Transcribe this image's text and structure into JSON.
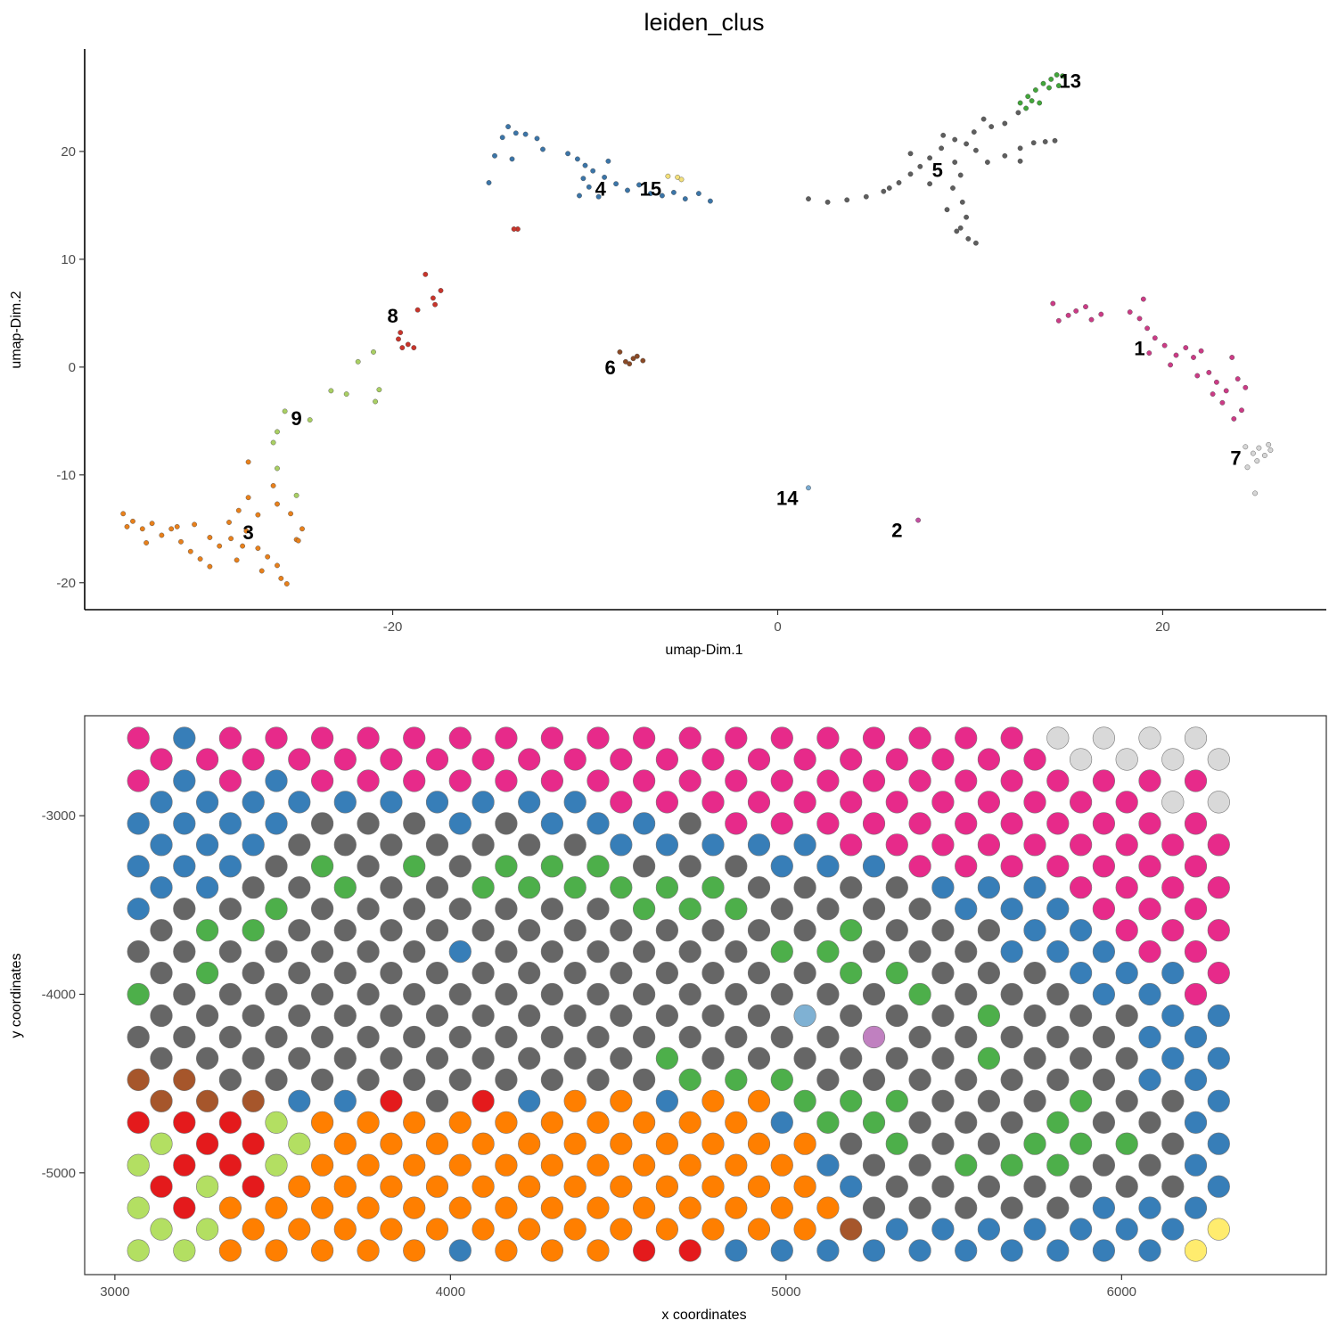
{
  "chart_data": [
    {
      "type": "scatter",
      "title": "leiden_clus",
      "xlabel": "umap-Dim.1",
      "ylabel": "umap-Dim.2",
      "xlim": [
        -36,
        28.5
      ],
      "ylim": [
        -22.5,
        29.5
      ],
      "xticks": [
        -20,
        0,
        20
      ],
      "yticks": [
        -20,
        -10,
        0,
        10,
        20
      ],
      "colors": {
        "1": "#cc3b86",
        "2": "#c24fa1",
        "3": "#e8801b",
        "4": "#3b75a8",
        "5": "#5e5e5e",
        "6": "#8a4a26",
        "7": "#d6d6d6",
        "8": "#c9342b",
        "9": "#a9cf63",
        "13": "#42a63a",
        "14": "#7aaad0",
        "15": "#f3e07a"
      },
      "clusters": [
        {
          "name": "1",
          "label_pos": [
            18.8,
            1.6
          ],
          "points": [
            [
              14.3,
              5.9
            ],
            [
              14.6,
              4.3
            ],
            [
              15.1,
              4.8
            ],
            [
              15.5,
              5.2
            ],
            [
              16.0,
              5.6
            ],
            [
              16.3,
              4.4
            ],
            [
              16.8,
              4.9
            ],
            [
              18.3,
              5.1
            ],
            [
              18.8,
              4.5
            ],
            [
              19.2,
              3.6
            ],
            [
              19.0,
              6.3
            ],
            [
              19.6,
              2.7
            ],
            [
              20.1,
              2.0
            ],
            [
              20.7,
              1.1
            ],
            [
              21.2,
              1.8
            ],
            [
              21.6,
              0.9
            ],
            [
              22.0,
              1.5
            ],
            [
              22.4,
              -0.5
            ],
            [
              22.8,
              -1.4
            ],
            [
              23.3,
              -2.2
            ],
            [
              23.6,
              0.9
            ],
            [
              23.9,
              -1.1
            ],
            [
              24.3,
              -1.9
            ],
            [
              23.1,
              -3.3
            ],
            [
              24.1,
              -4.0
            ],
            [
              23.7,
              -4.8
            ],
            [
              19.3,
              1.3
            ],
            [
              20.4,
              0.2
            ],
            [
              21.8,
              -0.8
            ],
            [
              22.6,
              -2.5
            ]
          ]
        },
        {
          "name": "2",
          "label_pos": [
            6.2,
            -15.3
          ],
          "points": [
            [
              7.3,
              -14.2
            ]
          ]
        },
        {
          "name": "3",
          "label_pos": [
            -27.5,
            -15.5
          ],
          "points": [
            [
              -34.0,
              -13.6
            ],
            [
              -33.5,
              -14.3
            ],
            [
              -33.0,
              -15.0
            ],
            [
              -32.5,
              -14.5
            ],
            [
              -32.0,
              -15.6
            ],
            [
              -31.5,
              -15.0
            ],
            [
              -31.0,
              -16.2
            ],
            [
              -30.5,
              -17.1
            ],
            [
              -30.0,
              -17.8
            ],
            [
              -29.5,
              -18.5
            ],
            [
              -30.3,
              -14.6
            ],
            [
              -29.5,
              -15.8
            ],
            [
              -29.0,
              -16.6
            ],
            [
              -28.5,
              -14.4
            ],
            [
              -28.0,
              -13.3
            ],
            [
              -27.5,
              -12.1
            ],
            [
              -27.0,
              -13.7
            ],
            [
              -27.6,
              -15.2
            ],
            [
              -27.0,
              -16.8
            ],
            [
              -26.5,
              -17.6
            ],
            [
              -26.0,
              -18.4
            ],
            [
              -25.8,
              -19.6
            ],
            [
              -25.5,
              -20.1
            ],
            [
              -25.0,
              -16.0
            ],
            [
              -24.7,
              -15.0
            ],
            [
              -25.3,
              -13.6
            ],
            [
              -26.0,
              -12.7
            ],
            [
              -26.2,
              -11.0
            ],
            [
              -28.1,
              -17.9
            ],
            [
              -28.4,
              -15.9
            ],
            [
              -33.8,
              -14.8
            ],
            [
              -32.8,
              -16.3
            ],
            [
              -31.2,
              -14.8
            ],
            [
              -27.8,
              -16.6
            ],
            [
              -26.8,
              -18.9
            ],
            [
              -27.5,
              -8.8
            ],
            [
              -24.9,
              -16.1
            ]
          ]
        },
        {
          "name": "4",
          "label_pos": [
            -9.2,
            16.4
          ],
          "points": [
            [
              -14.0,
              22.3
            ],
            [
              -13.6,
              21.7
            ],
            [
              -13.1,
              21.6
            ],
            [
              -12.5,
              21.2
            ],
            [
              -14.3,
              21.3
            ],
            [
              -15.0,
              17.1
            ],
            [
              -14.7,
              19.6
            ],
            [
              -12.2,
              20.2
            ],
            [
              -10.9,
              19.8
            ],
            [
              -10.4,
              19.3
            ],
            [
              -10.0,
              18.7
            ],
            [
              -9.6,
              18.2
            ],
            [
              -9.0,
              17.6
            ],
            [
              -8.4,
              17.0
            ],
            [
              -7.8,
              16.4
            ],
            [
              -7.2,
              16.9
            ],
            [
              -6.6,
              16.1
            ],
            [
              -6.0,
              15.9
            ],
            [
              -5.4,
              16.2
            ],
            [
              -4.8,
              15.6
            ],
            [
              -4.1,
              16.1
            ],
            [
              -3.5,
              15.4
            ],
            [
              -10.3,
              15.9
            ],
            [
              -9.8,
              16.7
            ],
            [
              -9.3,
              15.8
            ],
            [
              -8.8,
              19.1
            ],
            [
              -10.1,
              17.5
            ],
            [
              -13.8,
              19.3
            ]
          ]
        },
        {
          "name": "5",
          "label_pos": [
            8.3,
            18.1
          ],
          "points": [
            [
              1.6,
              15.6
            ],
            [
              2.6,
              15.3
            ],
            [
              3.6,
              15.5
            ],
            [
              4.6,
              15.8
            ],
            [
              5.5,
              16.3
            ],
            [
              6.3,
              17.1
            ],
            [
              6.9,
              17.9
            ],
            [
              7.4,
              18.6
            ],
            [
              7.9,
              19.4
            ],
            [
              8.5,
              20.3
            ],
            [
              9.2,
              21.1
            ],
            [
              10.2,
              21.8
            ],
            [
              11.1,
              22.3
            ],
            [
              11.8,
              22.6
            ],
            [
              9.8,
              20.7
            ],
            [
              9.2,
              19.0
            ],
            [
              9.5,
              17.8
            ],
            [
              9.1,
              16.6
            ],
            [
              9.6,
              15.3
            ],
            [
              9.8,
              13.9
            ],
            [
              9.5,
              12.9
            ],
            [
              9.9,
              11.9
            ],
            [
              10.3,
              11.5
            ],
            [
              9.3,
              12.6
            ],
            [
              8.8,
              14.6
            ],
            [
              10.3,
              20.1
            ],
            [
              10.9,
              19.0
            ],
            [
              11.8,
              19.6
            ],
            [
              12.6,
              20.3
            ],
            [
              13.3,
              20.8
            ],
            [
              13.9,
              20.9
            ],
            [
              14.4,
              21.0
            ],
            [
              12.6,
              19.1
            ],
            [
              7.9,
              17.0
            ],
            [
              8.6,
              21.5
            ],
            [
              10.7,
              23.0
            ],
            [
              12.5,
              23.6
            ],
            [
              6.9,
              19.8
            ],
            [
              5.8,
              16.6
            ]
          ]
        },
        {
          "name": "6",
          "label_pos": [
            -8.7,
            -0.2
          ],
          "points": [
            [
              -8.2,
              1.4
            ],
            [
              -7.9,
              0.5
            ],
            [
              -7.5,
              0.8
            ],
            [
              -7.0,
              0.6
            ],
            [
              -7.7,
              0.3
            ],
            [
              -7.3,
              1.0
            ]
          ]
        },
        {
          "name": "7",
          "label_pos": [
            23.8,
            -8.6
          ],
          "points": [
            [
              24.3,
              -7.4
            ],
            [
              24.7,
              -8.0
            ],
            [
              25.0,
              -7.5
            ],
            [
              25.3,
              -8.2
            ],
            [
              25.6,
              -7.7
            ],
            [
              24.9,
              -8.7
            ],
            [
              24.4,
              -9.3
            ],
            [
              24.8,
              -11.7
            ],
            [
              25.5,
              -7.2
            ]
          ]
        },
        {
          "name": "8",
          "label_pos": [
            -20.0,
            4.6
          ],
          "points": [
            [
              -18.3,
              8.6
            ],
            [
              -17.9,
              6.4
            ],
            [
              -17.5,
              7.1
            ],
            [
              -18.7,
              5.3
            ],
            [
              -19.6,
              3.2
            ],
            [
              -19.2,
              2.1
            ],
            [
              -19.5,
              1.8
            ],
            [
              -18.9,
              1.8
            ],
            [
              -19.7,
              2.6
            ],
            [
              -17.8,
              5.8
            ],
            [
              -13.5,
              12.8
            ],
            [
              -13.7,
              12.8
            ]
          ]
        },
        {
          "name": "9",
          "label_pos": [
            -25.0,
            -4.9
          ],
          "points": [
            [
              -25.6,
              -4.1
            ],
            [
              -24.3,
              -4.9
            ],
            [
              -23.2,
              -2.2
            ],
            [
              -22.4,
              -2.5
            ],
            [
              -21.8,
              0.5
            ],
            [
              -21.0,
              1.4
            ],
            [
              -20.7,
              -2.1
            ],
            [
              -20.9,
              -3.2
            ],
            [
              -26.0,
              -6.0
            ],
            [
              -26.2,
              -7.0
            ],
            [
              -25.0,
              -11.9
            ],
            [
              -26.0,
              -9.4
            ]
          ]
        },
        {
          "name": "13",
          "label_pos": [
            15.2,
            26.4
          ],
          "points": [
            [
              12.6,
              24.5
            ],
            [
              13.0,
              25.1
            ],
            [
              13.4,
              25.7
            ],
            [
              13.8,
              26.3
            ],
            [
              14.2,
              26.7
            ],
            [
              14.5,
              27.1
            ],
            [
              14.8,
              27.0
            ],
            [
              13.2,
              24.7
            ],
            [
              13.6,
              24.5
            ],
            [
              14.1,
              25.9
            ],
            [
              12.9,
              24.0
            ],
            [
              14.6,
              26.1
            ]
          ]
        },
        {
          "name": "14",
          "label_pos": [
            0.5,
            -12.3
          ],
          "points": [
            [
              1.6,
              -11.2
            ]
          ]
        },
        {
          "name": "15",
          "label_pos": [
            -6.6,
            16.4
          ],
          "points": [
            [
              -5.7,
              17.7
            ],
            [
              -5.2,
              17.6
            ],
            [
              -5.0,
              17.4
            ]
          ]
        }
      ]
    },
    {
      "type": "scatter",
      "xlabel": "x coordinates",
      "ylabel": "y coordinates",
      "xlim": [
        2910,
        6610
      ],
      "ylim": [
        -5570,
        -2440
      ],
      "xticks": [
        3000,
        4000,
        5000,
        6000
      ],
      "yticks": [
        -3000,
        -4000,
        -5000
      ],
      "spot_colors": {
        "P": "#e72a8a",
        "B": "#377eb8",
        "G": "#666666",
        "R": "#4daf4a",
        "O": "#ff7f00",
        "D": "#e41a1c",
        "L": "#b3df62",
        "K": "#a6562b",
        "W": "#d9d9d9",
        "Y": "#ffec6e",
        "T": "#7fb1d3",
        "V": "#c080c0"
      },
      "grid_x0": 3070,
      "grid_dx": 137,
      "grid_y0": -2565,
      "grid_dy": -119.6,
      "rows": [
        "PBPPPPPPPPPPPPPPPPPPWWWW",
        "PPPPPPPPPPPPPPPPPPPPWWWW",
        "PBPBPPPPPPPPPPPPPPPPPPPP",
        "BBBBBBBBBBPPPPPPPPPPPPWW",
        "BBBBGGGBGBBBGPPPPPPPPPPP",
        "BBBGGGGGGGBBBBBPPPPPPPPP",
        "BBBGRGRGRRRGGGBBBPPPPPPP",
        "BBGGRGGRRRRRRGGGGBBBPPPP",
        "BGGRGGGGGGGRRRGGGGBBBPPP",
        "GRRGGGGGGGGGGGGRGGGBBPPP",
        "GGGGGGGBGGGGGGRRGGGBBBPP",
        "GRGGGGGGGGGGGGGRRGGGBBBP",
        "RGGGGGGGGGGGGGGGGRGGGBBP",
        "GGGGGGGGGGGGGGTGGGRGGGBB",
        "GGGGGGGGGGGGGGGGVGGGGGBB",
        "GGGGGGGGGGGRGGGGGGRGGGBB",
        "KKGGGGGGGGGGRRRGGGGGGGBB",
        "KKKBBDGDBOOBOORRRGGGRGGB",
        "DDDLOOOOOOOOOOBRRGGGRGGB",
        "LDDLOOOOOOOOOOOGRGGRRRGB",
        "LDDLOOOOOOOOOOOBGGRRRGGB",
        "DLDOOOOOOOOOOOOBGGGGGGGB",
        "LDOOOOOOOOOOOOOOGGGGGBBB",
        "LLOOOOOOOOOOOOOKBBBBBBBY",
        "LLOOOOOBOOODDBBBBBBBBBBY"
      ]
    }
  ]
}
